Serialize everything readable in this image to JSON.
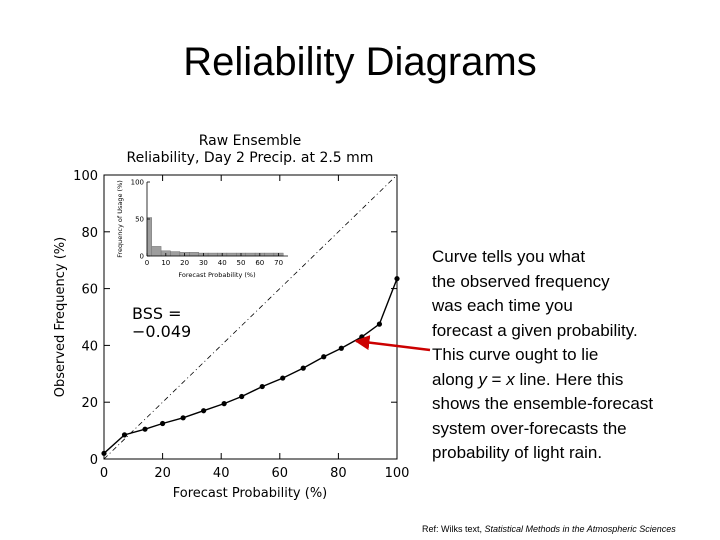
{
  "slide": {
    "title": "Reliability Diagrams",
    "explanation_lines": [
      "Curve tells you what",
      "the observed frequency",
      "was each time you",
      "forecast a given probability.",
      "This curve ought to lie",
      "along ",
      "line. Here this",
      "shows the ensemble-forecast",
      "system over-forecasts the",
      "probability of light rain."
    ],
    "equation": {
      "y": "y",
      "eq": " = ",
      "x": "x"
    },
    "reference": {
      "prefix": "Ref: Wilks text, ",
      "title": "Statistical Methods in the Atmospheric Sciences"
    }
  },
  "chart_data": {
    "type": "line",
    "title_line1": "Raw Ensemble",
    "title_line2": "Reliability, Day 2 Precip. at 2.5 mm",
    "xlabel": "Forecast Probability (%)",
    "ylabel": "Observed Frequency (%)",
    "xlim": [
      0,
      100
    ],
    "ylim": [
      0,
      100
    ],
    "xticks": [
      "0",
      "20",
      "40",
      "60",
      "80",
      "100"
    ],
    "yticks": [
      "0",
      "20",
      "40",
      "60",
      "80",
      "100"
    ],
    "reference_line": "y = x (dash-dot diagonal)",
    "annotation_line1": "BSS =",
    "annotation_line2": "−0.049",
    "series": [
      {
        "x": [
          0,
          7,
          14,
          20,
          27,
          34,
          41,
          47,
          54,
          61,
          68,
          75,
          81,
          88,
          94,
          100
        ],
        "y": [
          2,
          8.5,
          10.5,
          12.5,
          14.5,
          17,
          19.5,
          22,
          25.5,
          28.5,
          32,
          36,
          39,
          43,
          47.5,
          63.5
        ]
      }
    ],
    "arrow_target": {
      "x": 87,
      "y": 40
    },
    "inset": {
      "type": "bar",
      "xlabel": "Forecast Probability (%)",
      "ylabel": "Frequency of Usage (%)",
      "xlim": [
        0,
        75
      ],
      "ylim": [
        0,
        100
      ],
      "xticks": [
        "0",
        "10",
        "20",
        "30",
        "40",
        "50",
        "60",
        "70"
      ],
      "yticks": [
        "0",
        "50",
        "100"
      ],
      "bin_edges": [
        0,
        2.5,
        7.5,
        12.5,
        17.5,
        22.5,
        27.5,
        32.5,
        37.5,
        42.5,
        47.5,
        52.5,
        57.5,
        62.5,
        67.5,
        72.5
      ],
      "values": [
        52,
        13,
        7,
        6,
        5,
        5,
        4,
        4,
        4,
        4,
        4,
        4,
        4,
        4,
        4
      ]
    }
  }
}
